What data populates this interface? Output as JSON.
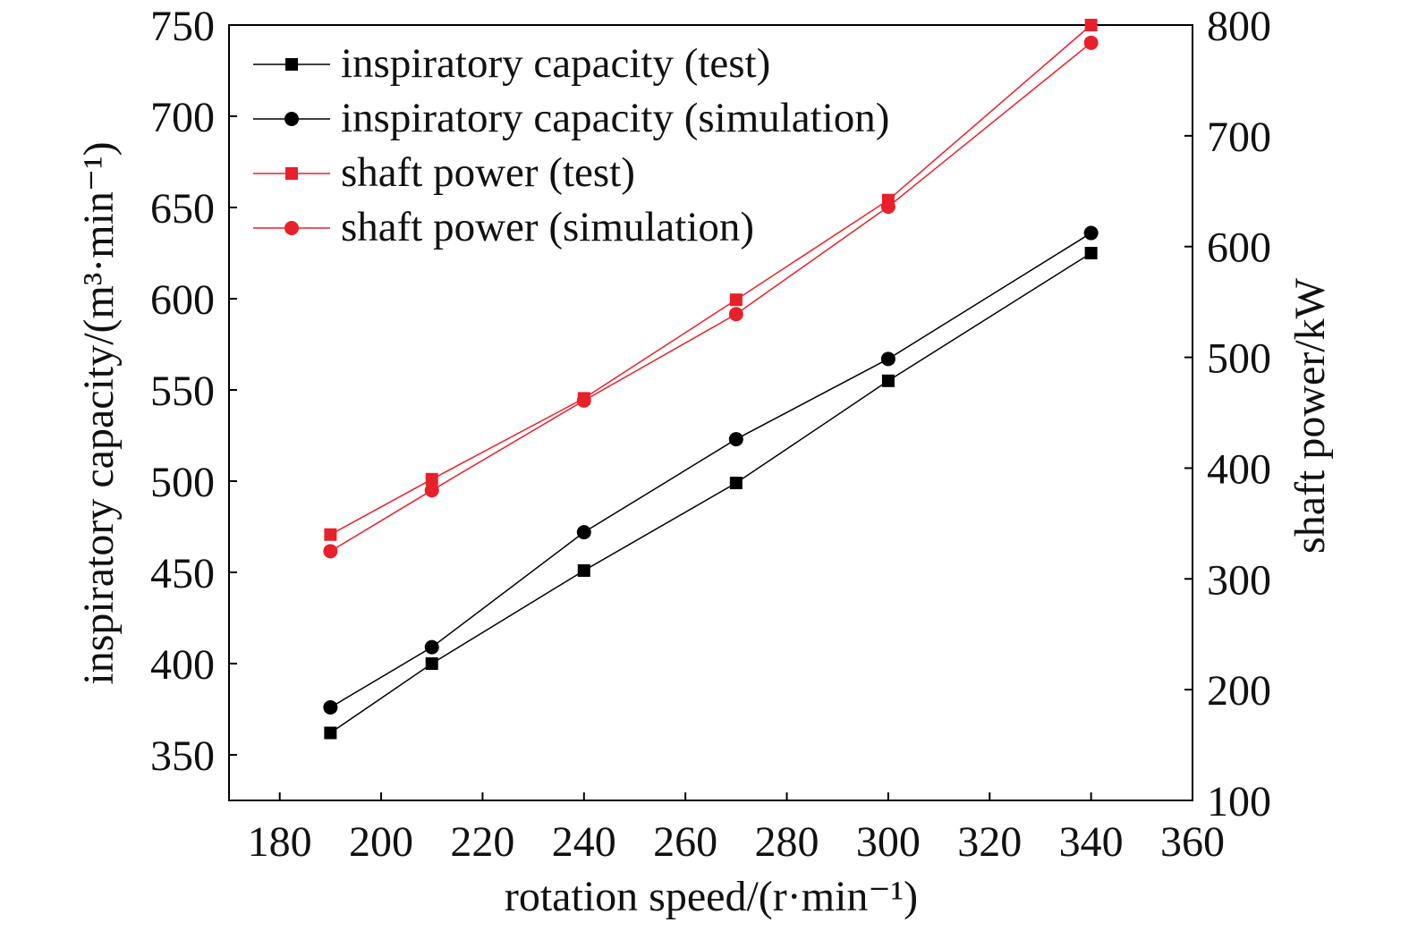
{
  "chart_data": {
    "type": "line",
    "x": [
      190,
      210,
      240,
      270,
      300,
      340
    ],
    "xlabel": "rotation speed/(r·min⁻¹)",
    "xlim": [
      170,
      360
    ],
    "xticks": [
      180,
      200,
      220,
      240,
      260,
      280,
      300,
      320,
      340,
      360
    ],
    "ylabel": "inspiratory capacity/(m³·min⁻¹)",
    "ylim": [
      325,
      750
    ],
    "yticks": [
      350,
      400,
      450,
      500,
      550,
      600,
      650,
      700,
      750
    ],
    "y2label": "shaft power/kW",
    "y2lim": [
      100,
      800
    ],
    "y2ticks": [
      100,
      200,
      300,
      400,
      500,
      600,
      700,
      800
    ],
    "legend_position": "top-left",
    "grid": false,
    "series": [
      {
        "name": "inspiratory capacity (test)",
        "axis": "left",
        "marker": "square",
        "color": "#000000",
        "values": [
          362,
          400,
          451,
          499,
          555,
          625
        ]
      },
      {
        "name": "inspiratory capacity (simulation)",
        "axis": "left",
        "marker": "circle",
        "color": "#000000",
        "values": [
          376,
          409,
          472,
          523,
          567,
          636
        ]
      },
      {
        "name": "shaft power (test)",
        "axis": "right",
        "marker": "square",
        "color": "#e8202a",
        "values": [
          340,
          390,
          463,
          552,
          642,
          800
        ]
      },
      {
        "name": "shaft power (simulation)",
        "axis": "right",
        "marker": "circle",
        "color": "#e8202a",
        "values": [
          325,
          380,
          461,
          539,
          636,
          784
        ]
      }
    ]
  }
}
